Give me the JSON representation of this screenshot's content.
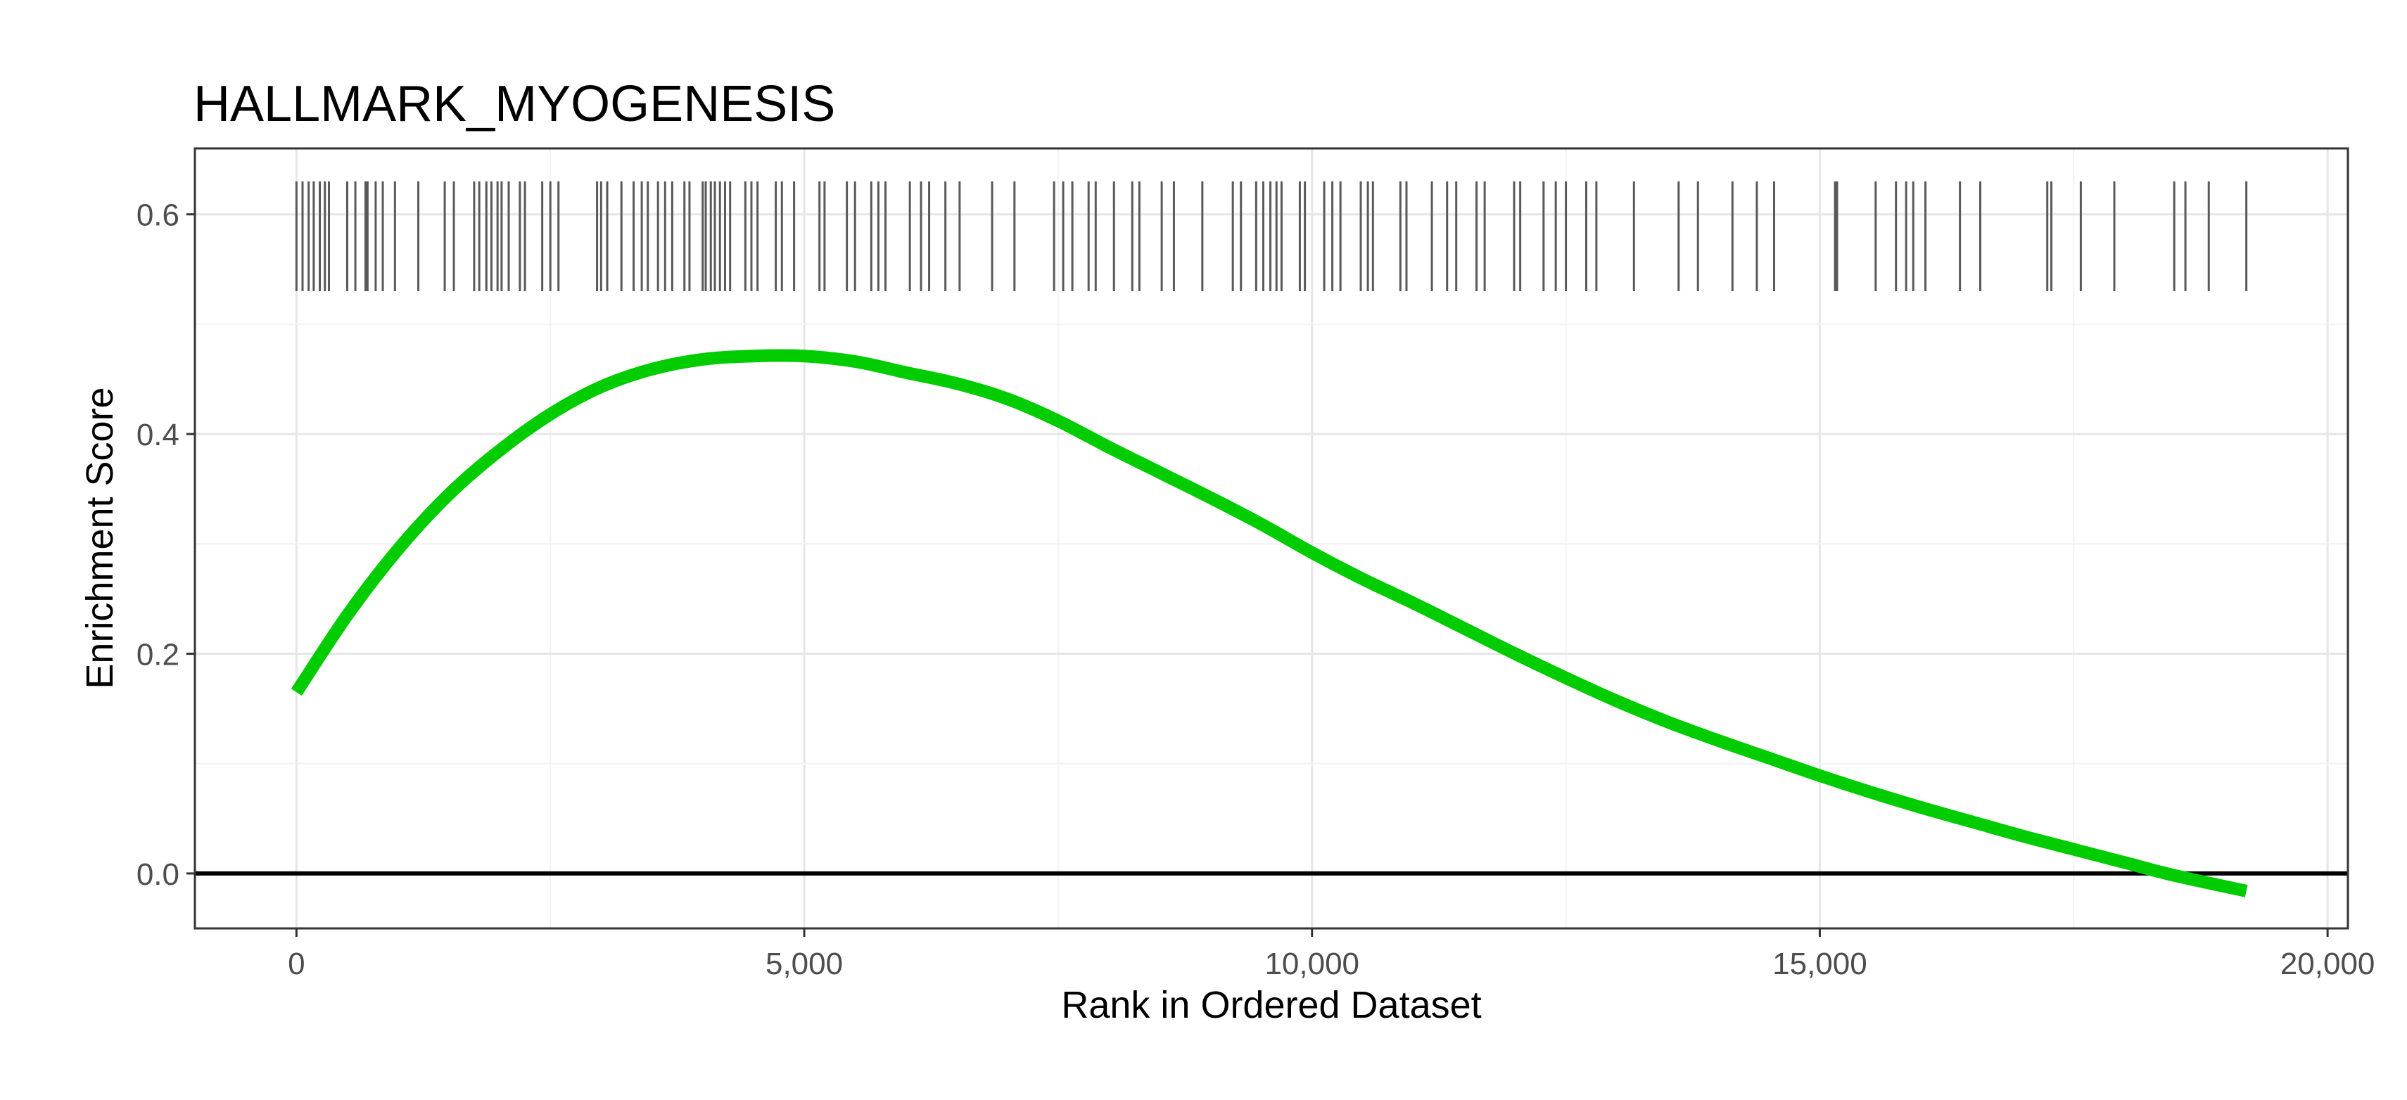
{
  "chart_data": {
    "type": "line",
    "title": "HALLMARK_MYOGENESIS",
    "xlabel": "Rank in Ordered Dataset",
    "ylabel": "Enrichment Score",
    "xlim": [
      -1000,
      20200
    ],
    "ylim": [
      -0.05,
      0.66
    ],
    "x_ticks": [
      0,
      5000,
      10000,
      15000,
      20000
    ],
    "x_tick_labels": [
      "0",
      "5,000",
      "10,000",
      "15,000",
      "20,000"
    ],
    "y_ticks": [
      0.0,
      0.2,
      0.4,
      0.6
    ],
    "y_tick_labels": [
      "0.0",
      "0.2",
      "0.4",
      "0.6"
    ],
    "grid": true,
    "reference_line_y": 0.0,
    "series": [
      {
        "color": "#00cc00",
        "x": [
          0,
          500,
          1000,
          1500,
          2000,
          2500,
          3000,
          3500,
          4000,
          4500,
          5000,
          5500,
          6000,
          6500,
          7000,
          7500,
          8000,
          8500,
          9000,
          9500,
          10000,
          10500,
          11000,
          11500,
          12000,
          12500,
          13000,
          13500,
          14000,
          14500,
          15000,
          15500,
          16000,
          16500,
          17000,
          17500,
          18000,
          18500,
          19200
        ],
        "y": [
          0.165,
          0.235,
          0.295,
          0.345,
          0.385,
          0.418,
          0.443,
          0.459,
          0.468,
          0.471,
          0.471,
          0.466,
          0.456,
          0.446,
          0.432,
          0.412,
          0.388,
          0.365,
          0.342,
          0.318,
          0.292,
          0.268,
          0.246,
          0.223,
          0.2,
          0.178,
          0.157,
          0.138,
          0.121,
          0.105,
          0.089,
          0.074,
          0.06,
          0.047,
          0.034,
          0.022,
          0.01,
          -0.002,
          -0.016
        ]
      }
    ],
    "hits": [
      {
        "rank": 0,
        "rows": 1
      },
      {
        "rank": 60,
        "rows": 1
      },
      {
        "rank": 120,
        "rows": 1
      },
      {
        "rank": 170,
        "rows": 1
      },
      {
        "rank": 230,
        "rows": 1
      },
      {
        "rank": 280,
        "rows": 1
      },
      {
        "rank": 320,
        "rows": 1
      },
      {
        "rank": 500,
        "rows": 1
      },
      {
        "rank": 580,
        "rows": 1
      },
      {
        "rank": 680,
        "rows": 1
      },
      {
        "rank": 700,
        "rows": 1
      },
      {
        "rank": 780,
        "rows": 1
      },
      {
        "rank": 850,
        "rows": 1
      },
      {
        "rank": 970,
        "rows": 1
      },
      {
        "rank": 1200,
        "rows": 1
      },
      {
        "rank": 1460,
        "rows": 1
      },
      {
        "rank": 1550,
        "rows": 1
      },
      {
        "rank": 1750,
        "rows": 1
      },
      {
        "rank": 1800,
        "rows": 1
      },
      {
        "rank": 1870,
        "rows": 1
      },
      {
        "rank": 1920,
        "rows": 1
      },
      {
        "rank": 1980,
        "rows": 1
      },
      {
        "rank": 2020,
        "rows": 1
      },
      {
        "rank": 2090,
        "rows": 1
      },
      {
        "rank": 2200,
        "rows": 1
      },
      {
        "rank": 2250,
        "rows": 1
      },
      {
        "rank": 2420,
        "rows": 1
      },
      {
        "rank": 2500,
        "rows": 1
      },
      {
        "rank": 2580,
        "rows": 1
      },
      {
        "rank": 2960,
        "rows": 1
      },
      {
        "rank": 3000,
        "rows": 1
      },
      {
        "rank": 3060,
        "rows": 1
      },
      {
        "rank": 3200,
        "rows": 1
      },
      {
        "rank": 3320,
        "rows": 1
      },
      {
        "rank": 3400,
        "rows": 1
      },
      {
        "rank": 3460,
        "rows": 1
      },
      {
        "rank": 3560,
        "rows": 1
      },
      {
        "rank": 3630,
        "rows": 1
      },
      {
        "rank": 3700,
        "rows": 1
      },
      {
        "rank": 3820,
        "rows": 1
      },
      {
        "rank": 3870,
        "rows": 1
      },
      {
        "rank": 4000,
        "rows": 1
      },
      {
        "rank": 4030,
        "rows": 1
      },
      {
        "rank": 4080,
        "rows": 1
      },
      {
        "rank": 4120,
        "rows": 1
      },
      {
        "rank": 4170,
        "rows": 1
      },
      {
        "rank": 4220,
        "rows": 1
      },
      {
        "rank": 4270,
        "rows": 1
      },
      {
        "rank": 4420,
        "rows": 1
      },
      {
        "rank": 4480,
        "rows": 1
      },
      {
        "rank": 4540,
        "rows": 1
      },
      {
        "rank": 4720,
        "rows": 1
      },
      {
        "rank": 4780,
        "rows": 1
      },
      {
        "rank": 4900,
        "rows": 1
      },
      {
        "rank": 5150,
        "rows": 1
      },
      {
        "rank": 5200,
        "rows": 1
      },
      {
        "rank": 5420,
        "rows": 1
      },
      {
        "rank": 5500,
        "rows": 1
      },
      {
        "rank": 5660,
        "rows": 1
      },
      {
        "rank": 5730,
        "rows": 1
      },
      {
        "rank": 5800,
        "rows": 1
      },
      {
        "rank": 6040,
        "rows": 1
      },
      {
        "rank": 6150,
        "rows": 1
      },
      {
        "rank": 6230,
        "rows": 1
      },
      {
        "rank": 6390,
        "rows": 1
      },
      {
        "rank": 6530,
        "rows": 1
      },
      {
        "rank": 6850,
        "rows": 1
      },
      {
        "rank": 7070,
        "rows": 1
      },
      {
        "rank": 7460,
        "rows": 1
      },
      {
        "rank": 7550,
        "rows": 1
      },
      {
        "rank": 7640,
        "rows": 1
      },
      {
        "rank": 7800,
        "rows": 1
      },
      {
        "rank": 7870,
        "rows": 1
      },
      {
        "rank": 8050,
        "rows": 1
      },
      {
        "rank": 8230,
        "rows": 1
      },
      {
        "rank": 8300,
        "rows": 1
      },
      {
        "rank": 8520,
        "rows": 1
      },
      {
        "rank": 8640,
        "rows": 1
      },
      {
        "rank": 8920,
        "rows": 1
      },
      {
        "rank": 9220,
        "rows": 1
      },
      {
        "rank": 9300,
        "rows": 1
      },
      {
        "rank": 9450,
        "rows": 1
      },
      {
        "rank": 9520,
        "rows": 1
      },
      {
        "rank": 9590,
        "rows": 1
      },
      {
        "rank": 9650,
        "rows": 1
      },
      {
        "rank": 9700,
        "rows": 1
      },
      {
        "rank": 9880,
        "rows": 1
      },
      {
        "rank": 9930,
        "rows": 1
      },
      {
        "rank": 10120,
        "rows": 1
      },
      {
        "rank": 10200,
        "rows": 1
      },
      {
        "rank": 10280,
        "rows": 1
      },
      {
        "rank": 10480,
        "rows": 1
      },
      {
        "rank": 10550,
        "rows": 1
      },
      {
        "rank": 10600,
        "rows": 1
      },
      {
        "rank": 10870,
        "rows": 1
      },
      {
        "rank": 10930,
        "rows": 1
      },
      {
        "rank": 11180,
        "rows": 1
      },
      {
        "rank": 11330,
        "rows": 1
      },
      {
        "rank": 11420,
        "rows": 1
      },
      {
        "rank": 11620,
        "rows": 1
      },
      {
        "rank": 11700,
        "rows": 1
      },
      {
        "rank": 11990,
        "rows": 1
      },
      {
        "rank": 12050,
        "rows": 1
      },
      {
        "rank": 12280,
        "rows": 1
      },
      {
        "rank": 12400,
        "rows": 1
      },
      {
        "rank": 12500,
        "rows": 1
      },
      {
        "rank": 12700,
        "rows": 1
      },
      {
        "rank": 12800,
        "rows": 1
      },
      {
        "rank": 13170,
        "rows": 1
      },
      {
        "rank": 13610,
        "rows": 1
      },
      {
        "rank": 13800,
        "rows": 1
      },
      {
        "rank": 14140,
        "rows": 1
      },
      {
        "rank": 14380,
        "rows": 1
      },
      {
        "rank": 14550,
        "rows": 1
      },
      {
        "rank": 15150,
        "rows": 1
      },
      {
        "rank": 15170,
        "rows": 1
      },
      {
        "rank": 15550,
        "rows": 1
      },
      {
        "rank": 15750,
        "rows": 1
      },
      {
        "rank": 15850,
        "rows": 1
      },
      {
        "rank": 15920,
        "rows": 1
      },
      {
        "rank": 16040,
        "rows": 1
      },
      {
        "rank": 16380,
        "rows": 1
      },
      {
        "rank": 16580,
        "rows": 1
      },
      {
        "rank": 17240,
        "rows": 1
      },
      {
        "rank": 17280,
        "rows": 1
      },
      {
        "rank": 17570,
        "rows": 1
      },
      {
        "rank": 17900,
        "rows": 1
      },
      {
        "rank": 18490,
        "rows": 1
      },
      {
        "rank": 18600,
        "rows": 1
      },
      {
        "rank": 18830,
        "rows": 1
      },
      {
        "rank": 19200,
        "rows": 1
      }
    ],
    "hit_band_y": [
      0.53,
      0.63
    ]
  }
}
